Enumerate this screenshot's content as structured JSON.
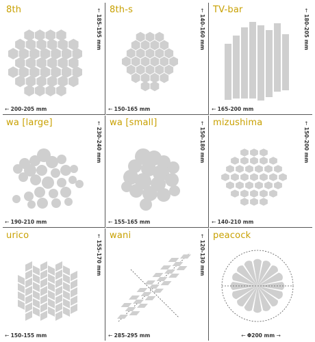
{
  "fill_color": "#cfcfcf",
  "label_color": "#c8a000",
  "tiles": [
    {
      "id": "8th",
      "name": "8th",
      "width_dim": "200-205 mm",
      "height_dim": "185-195 mm"
    },
    {
      "id": "8th-s",
      "name": "8th-s",
      "width_dim": "150-165 mm",
      "height_dim": "140-160 mm"
    },
    {
      "id": "tv-bar",
      "name": "TV-bar",
      "width_dim": "165-200 mm",
      "height_dim": "180-205 mm"
    },
    {
      "id": "wa-large",
      "name": "wa [large]",
      "width_dim": "190-210 mm",
      "height_dim": "230-240 mm"
    },
    {
      "id": "wa-small",
      "name": "wa [small]",
      "width_dim": "155-165 mm",
      "height_dim": "150-180 mm"
    },
    {
      "id": "mizushima",
      "name": "mizushima",
      "width_dim": "140-210 mm",
      "height_dim": "150-200 mm"
    },
    {
      "id": "urico",
      "name": "urico",
      "width_dim": "150-155 mm",
      "height_dim": "155-170 mm"
    },
    {
      "id": "wani",
      "name": "wani",
      "width_dim": "285-295 mm",
      "height_dim": "120-130 mm"
    },
    {
      "id": "peacock",
      "name": "peacock",
      "width_dim": "Φ200 mm",
      "height_dim": ""
    }
  ]
}
